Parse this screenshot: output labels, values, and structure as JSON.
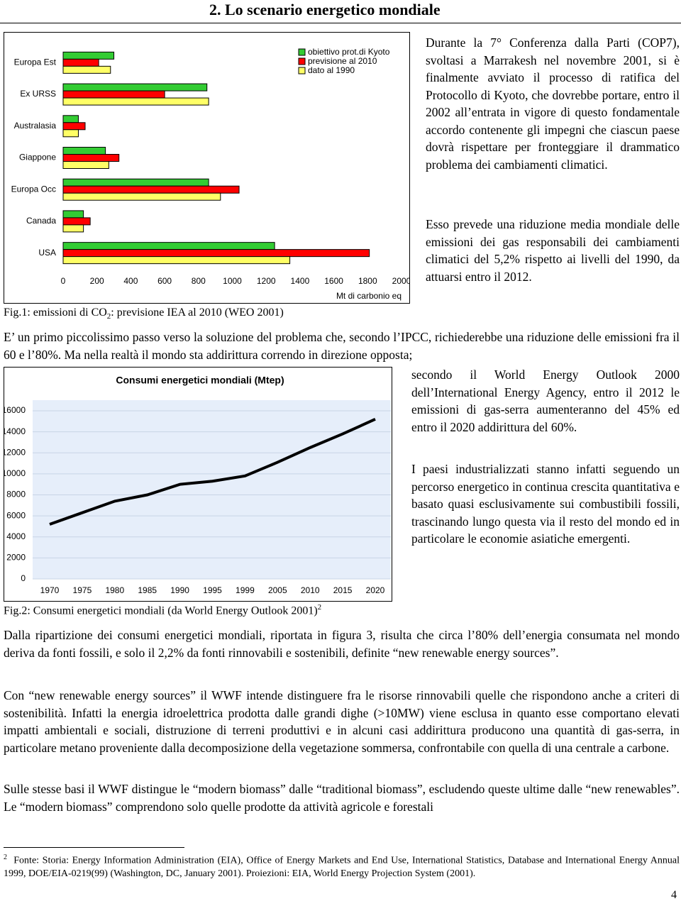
{
  "header": {
    "title": "2. Lo scenario energetico mondiale"
  },
  "chart_data": [
    {
      "type": "hbar",
      "categories": [
        "Europa Est",
        "Ex URSS",
        "Australasia",
        "Giappone",
        "Europa Occ",
        "Canada",
        "USA"
      ],
      "series": [
        {
          "name": "obiettivo prot.di Kyoto",
          "color": "#33cc33",
          "values": [
            300,
            850,
            90,
            250,
            860,
            120,
            1250
          ]
        },
        {
          "name": "previsione al 2010",
          "color": "#ff0000",
          "values": [
            210,
            600,
            130,
            330,
            1040,
            160,
            1810
          ]
        },
        {
          "name": "dato al 1990",
          "color": "#ffff66",
          "values": [
            280,
            860,
            90,
            270,
            930,
            120,
            1340
          ]
        }
      ],
      "xlim": [
        0,
        2000
      ],
      "xticks": [
        0,
        200,
        400,
        600,
        800,
        1000,
        1200,
        1400,
        1600,
        1800,
        2000
      ],
      "x_label": "Mt di carbonio eq",
      "legend": "upper right",
      "grid": false
    },
    {
      "type": "line",
      "title": "Consumi energetici mondiali (Mtep)",
      "categories": [
        "1970",
        "1975",
        "1980",
        "1985",
        "1990",
        "1995",
        "1999",
        "2005",
        "2010",
        "2015",
        "2020"
      ],
      "values": [
        5200,
        6300,
        7400,
        8000,
        9000,
        9300,
        9800,
        11100,
        12500,
        13800,
        15200
      ],
      "color": "#000000",
      "ylim": [
        0,
        16000
      ],
      "yticks": [
        0,
        2000,
        4000,
        6000,
        8000,
        10000,
        12000,
        14000,
        16000
      ],
      "grid": true
    }
  ],
  "captions": {
    "fig1": {
      "prefix": "Fig.1: emissioni di CO",
      "sub": "2",
      "suffix": ": previsione IEA al 2010 (WEO 2001)"
    },
    "fig2": {
      "text": "Fig.2: Consumi energetici mondiali (da World Energy Outlook 2001)",
      "note": "2"
    }
  },
  "body": {
    "p1": "Durante la 7° Conferenza dalla Parti (COP7), svoltasi a Marrakesh nel novembre 2001, si è finalmente avviato il processo di ratifica del Protocollo di Kyoto, che dovrebbe portare, entro il 2002 all’entrata in vigore di questo fondamentale accordo contenente gli impegni che ciascun paese dovrà rispettare per fronteggiare il drammatico problema dei cambiamenti climatici.",
    "p2": "Esso prevede una riduzione media mondiale delle emissioni dei gas responsabili dei cambiamenti climatici del 5,2% rispetto ai livelli del 1990, da attuarsi entro il 2012.",
    "p3a": "E’ un primo piccolissimo passo verso la soluzione del problema che, secondo l’IPCC, richiederebbe una riduzione delle emissioni fra il 60 e l’80%. Ma nella realtà il mondo sta addirittura correndo in direzione opposta;",
    "p3b": "secondo il World Energy Outlook 2000 dell’International Energy Agency, entro il 2012 le emissioni di gas-serra aumenteranno del 45% ed entro il 2020 addirittura del 60%.",
    "p4": "I paesi industrializzati stanno infatti seguendo un percorso energetico in continua crescita quantitativa e basato quasi esclusivamente sui combustibili fossili, trascinando lungo questa via il resto del mondo ed in particolare le economie asiatiche emergenti.",
    "p5": "Dalla ripartizione dei consumi energetici mondiali, riportata in figura 3, risulta che circa l’80% dell’energia consumata nel mondo deriva da fonti fossili, e solo il 2,2% da fonti rinnovabili e sostenibili, definite “new renewable energy sources”.",
    "p6": "Con “new renewable energy sources” il WWF intende distinguere fra le risorse rinnovabili quelle che rispondono anche a criteri di sostenibilità. Infatti la energia idroelettrica prodotta dalle grandi dighe (>10MW) viene esclusa in quanto esse comportano elevati impatti ambientali e sociali, distruzione di terreni produttivi e in alcuni casi addirittura producono una quantità di gas-serra, in particolare metano proveniente dalla decomposizione della vegetazione sommersa, confrontabile con quella di una centrale a carbone.",
    "p7": "Sulle stesse basi il WWF distingue le “modern biomass” dalle “traditional biomass”, escludendo queste ultime dalle “new renewables”. Le “modern biomass” comprendono solo quelle prodotte da attività agricole e forestali"
  },
  "footnote": {
    "mark": "2",
    "text": "Fonte: Storia: Energy Information Administration (EIA), Office of Energy Markets and End Use, International Statistics, Database and International Energy Annual 1999, DOE/EIA-0219(99) (Washington, DC, January 2001). Proiezioni: EIA, World Energy Projection System (2001)."
  },
  "page_number": "4"
}
